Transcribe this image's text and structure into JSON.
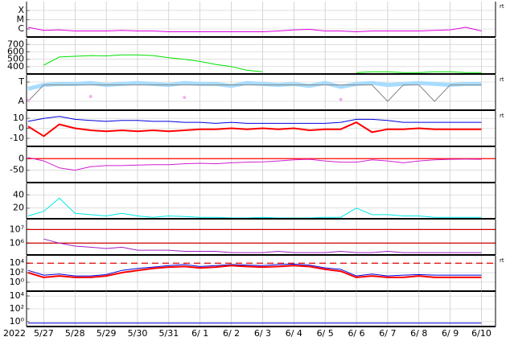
{
  "chart_data": {
    "type": "line",
    "year": "2022",
    "xlim": [
      146.45,
      161.45
    ],
    "xticks": [
      {
        "value": 147,
        "label": "5/27"
      },
      {
        "value": 148,
        "label": "5/28"
      },
      {
        "value": 149,
        "label": "5/29"
      },
      {
        "value": 150,
        "label": "5/30"
      },
      {
        "value": 151,
        "label": "5/31"
      },
      {
        "value": 152,
        "label": "6/ 1"
      },
      {
        "value": 153,
        "label": "6/ 2"
      },
      {
        "value": 154,
        "label": "6/ 3"
      },
      {
        "value": 155,
        "label": "6/ 4"
      },
      {
        "value": 156,
        "label": "6/ 5"
      },
      {
        "value": 157,
        "label": "6/ 6"
      },
      {
        "value": 158,
        "label": "6/ 7"
      },
      {
        "value": 159,
        "label": "6/ 8"
      },
      {
        "value": 160,
        "label": "6/ 9"
      },
      {
        "value": 161,
        "label": "6/10"
      }
    ],
    "x": [
      146.5,
      147,
      147.5,
      148,
      148.5,
      149,
      149.5,
      150,
      150.5,
      151,
      151.5,
      152,
      152.5,
      153,
      153.5,
      154,
      154.5,
      155,
      155.5,
      156,
      156.5,
      157,
      157.5,
      158,
      158.5,
      159,
      159.5,
      160,
      160.5,
      161
    ],
    "grid": true,
    "panels": [
      {
        "log": true,
        "ylim": [
          1.35e-07,
          0.0009
        ],
        "annotation": "rt",
        "yticks": [
          {
            "value": 0.0001,
            "label": "X"
          },
          {
            "value": 1e-05,
            "label": "M"
          },
          {
            "value": 1e-06,
            "label": "C"
          }
        ],
        "series": [
          {
            "color": "#e000e0",
            "values": [
              1.5e-06,
              7e-07,
              8e-07,
              6e-07,
              6e-07,
              6e-07,
              7e-07,
              6e-07,
              6e-07,
              5e-07,
              5e-07,
              5e-07,
              5e-07,
              5e-07,
              5e-07,
              5e-07,
              6e-07,
              8e-07,
              9e-07,
              6e-07,
              6e-07,
              5e-07,
              6e-07,
              6e-07,
              6e-07,
              6e-07,
              7e-07,
              8e-07,
              1.5e-06,
              6e-07
            ]
          }
        ]
      },
      {
        "log": false,
        "ylim": [
          300,
          780
        ],
        "yticks": [
          700,
          600,
          500,
          400
        ],
        "series": [
          {
            "color": "#00e000",
            "values": [
              null,
              420,
              530,
              540,
              550,
              545,
              560,
              560,
              550,
              520,
              500,
              470,
              430,
              400,
              350,
              330,
              null,
              null,
              null,
              null,
              null,
              320,
              330,
              330,
              320,
              320,
              330,
              330,
              320,
              320
            ]
          }
        ]
      },
      {
        "log": false,
        "ylim": [
          -1.92,
          1.75
        ],
        "annotation": "rt",
        "yticks": [
          {
            "value": 1,
            "label": "T"
          },
          {
            "value": -1,
            "label": "A"
          }
        ],
        "series": [
          {
            "color": "#a8dcff",
            "width": 5,
            "values": [
              0.3,
              0.7,
              0.8,
              0.8,
              0.9,
              0.7,
              0.8,
              0.9,
              0.8,
              0.7,
              0.9,
              0.8,
              0.8,
              0.6,
              0.9,
              0.8,
              0.7,
              0.8,
              0.6,
              0.9,
              0.5,
              0.8,
              0.9,
              0.7,
              0.8,
              0.9,
              0.8,
              0.7,
              0.8,
              0.8
            ]
          },
          {
            "color": "#888888",
            "values": [
              -1,
              0.7,
              0.7,
              0.7,
              0.7,
              0.7,
              0.7,
              0.7,
              0.7,
              0.7,
              0.7,
              0.7,
              0.7,
              0.7,
              0.7,
              0.7,
              0.7,
              0.7,
              0.7,
              0.7,
              0.7,
              0.7,
              0.7,
              -1,
              0.7,
              0.7,
              -1,
              0.7,
              0.7,
              0.7
            ]
          },
          {
            "color": "#f0b0f0",
            "mode": "markers",
            "values": [
              -0.9,
              null,
              null,
              null,
              -0.5,
              null,
              null,
              null,
              null,
              null,
              -0.6,
              null,
              null,
              null,
              null,
              null,
              null,
              null,
              null,
              null,
              -0.8,
              null,
              null,
              null,
              null,
              null,
              null,
              null,
              null,
              null
            ]
          }
        ]
      },
      {
        "log": false,
        "ylim": [
          -18.3,
          17.5
        ],
        "yticks": [
          10,
          0,
          -10
        ],
        "annotation": "rt",
        "series": [
          {
            "color": "#0000e0",
            "values": [
              7,
              10,
              12,
              9,
              8,
              7,
              8,
              8,
              7,
              7,
              6,
              6,
              5,
              6,
              5,
              5,
              5,
              5,
              5,
              5,
              6,
              9,
              9,
              8,
              6,
              6,
              6,
              6,
              6,
              6
            ]
          },
          {
            "color": "#ff0000",
            "width": 2,
            "values": [
              2,
              -8,
              4,
              0,
              -2,
              -3,
              -2,
              -3,
              -2,
              -3,
              -2,
              -1,
              -1,
              0,
              -1,
              0,
              -1,
              0,
              -2,
              -1,
              -1,
              6,
              -4,
              -1,
              -1,
              0,
              -1,
              -1,
              -1,
              -1
            ]
          }
        ]
      },
      {
        "log": false,
        "ylim": [
          -104,
          50
        ],
        "yticks": [
          0,
          -50
        ],
        "reference_lines": [
          {
            "value": 0,
            "color": "#ff0000"
          }
        ],
        "series": [
          {
            "color": "#d020d0",
            "values": [
              5,
              -10,
              -40,
              -50,
              -35,
              -30,
              -30,
              -28,
              -26,
              -26,
              -22,
              -20,
              -22,
              -18,
              -15,
              -14,
              -10,
              -5,
              -3,
              -10,
              -15,
              -15,
              -5,
              -10,
              -18,
              -10,
              -5,
              -3,
              -2,
              -3
            ]
          }
        ]
      },
      {
        "log": false,
        "ylim": [
          3.75,
          57.5
        ],
        "yticks": [
          40,
          20
        ],
        "series": [
          {
            "color": "#00e8e8",
            "values": [
              8,
              15,
              35,
              12,
              10,
              8,
              12,
              8,
              6,
              8,
              7,
              6,
              6,
              5,
              5,
              6,
              5,
              5,
              5,
              6,
              6,
              20,
              10,
              10,
              8,
              8,
              6,
              6,
              6,
              6
            ]
          }
        ]
      },
      {
        "log": true,
        "ylim": [
          135000,
          53700000
        ],
        "yticks": [
          {
            "value": 10000000,
            "label": "10⁷"
          },
          {
            "value": 1000000,
            "label": "10⁶"
          }
        ],
        "reference_lines": [
          {
            "value": 10000000,
            "color": "#cc0000"
          },
          {
            "value": 1000000,
            "color": "#cc0000"
          }
        ],
        "series": [
          {
            "color": "#a020c0",
            "values": [
              null,
              2000000,
              1000000,
              600000,
              500000,
              400000,
              500000,
              300000,
              300000,
              300000,
              250000,
              250000,
              250000,
              200000,
              200000,
              200000,
              250000,
              200000,
              200000,
              200000,
              250000,
              200000,
              200000,
              250000,
              200000,
              200000,
              200000,
              200000,
              200000,
              200000
            ]
          }
        ]
      },
      {
        "log": true,
        "ylim": [
          0.0126,
          370000
        ],
        "annotation": "rt",
        "yticks": [
          {
            "value": 10000,
            "label": "10⁴"
          },
          {
            "value": 100,
            "label": "10²"
          },
          {
            "value": 1,
            "label": "10⁰"
          }
        ],
        "reference_lines": [
          {
            "value": 10000,
            "color": "#dd0000",
            "dashed": true
          }
        ],
        "series": [
          {
            "color": "#0000e0",
            "values": [
              300,
              30,
              50,
              20,
              20,
              40,
              300,
              800,
              1500,
              3000,
              5000,
              2000,
              3000,
              5000,
              4000,
              3000,
              5000,
              6000,
              4000,
              1000,
              500,
              20,
              50,
              20,
              30,
              40,
              30,
              30,
              30,
              30
            ]
          },
          {
            "color": "#ff0000",
            "width": 2,
            "values": [
              100,
              10,
              20,
              10,
              10,
              20,
              100,
              300,
              800,
              1500,
              2000,
              1000,
              1500,
              3000,
              2000,
              1500,
              2000,
              3000,
              2000,
              500,
              200,
              10,
              20,
              10,
              10,
              20,
              10,
              10,
              10,
              10
            ]
          }
        ]
      },
      {
        "log": true,
        "ylim": [
          0.17,
          59000
        ],
        "yticks": [
          {
            "value": 10000,
            "label": "10⁴"
          },
          {
            "value": 100,
            "label": "10²"
          },
          {
            "value": 1,
            "label": "10⁰"
          }
        ],
        "series": [
          {
            "color": "#0000e0",
            "values": [
              0.6,
              0.6,
              0.6,
              0.6,
              0.6,
              0.6,
              0.6,
              0.6,
              0.6,
              0.6,
              0.6,
              0.6,
              0.6,
              0.6,
              0.6,
              0.6,
              0.6,
              0.6,
              0.6,
              0.6,
              0.6,
              0.6,
              0.6,
              0.6,
              0.6,
              0.6,
              0.6,
              0.6,
              0.6,
              0.6
            ]
          }
        ]
      }
    ]
  }
}
